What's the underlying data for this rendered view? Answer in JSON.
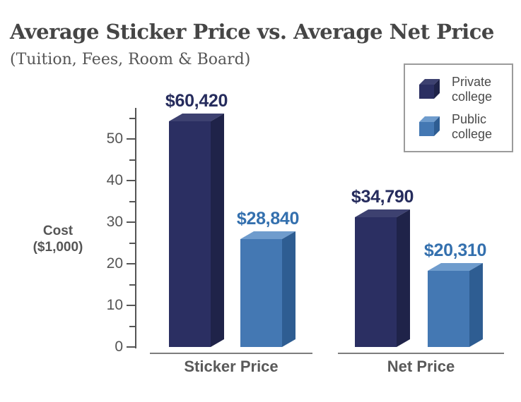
{
  "header": {
    "title": "Average Sticker Price vs. Average Net Price",
    "subtitle": "(Tuition, Fees, Room & Board)"
  },
  "chart_data": {
    "type": "bar",
    "title": "Average Sticker Price vs. Average Net Price",
    "subtitle": "(Tuition, Fees, Room & Board)",
    "categories": [
      "Sticker Price",
      "Net Price"
    ],
    "series": [
      {
        "name": "Private college",
        "values": [
          60420,
          34790
        ],
        "value_labels": [
          "$60,420",
          "$34,790"
        ],
        "color_front": "#2b2f62",
        "color_top": "#3d4170",
        "color_side": "#1f2349",
        "label_color": "#262c5d"
      },
      {
        "name": "Public college",
        "values": [
          28840,
          20310
        ],
        "value_labels": [
          "$28,840",
          "$20,310"
        ],
        "color_front": "#4478b3",
        "color_top": "#6f9ccd",
        "color_side": "#2e5d92",
        "label_color": "#3470ae"
      }
    ],
    "xlabel": "",
    "ylabel_lines": [
      "Cost",
      "($1,000)"
    ],
    "y_axis": {
      "major_ticks": [
        0,
        10,
        20,
        30,
        40,
        50
      ],
      "minor_ticks": [
        5,
        15,
        25,
        35,
        45,
        55
      ],
      "range": [
        0,
        57
      ],
      "units": "thousands of dollars"
    },
    "legend": {
      "position": "top-right"
    },
    "grid": false,
    "style": "3d-extruded-bars"
  }
}
